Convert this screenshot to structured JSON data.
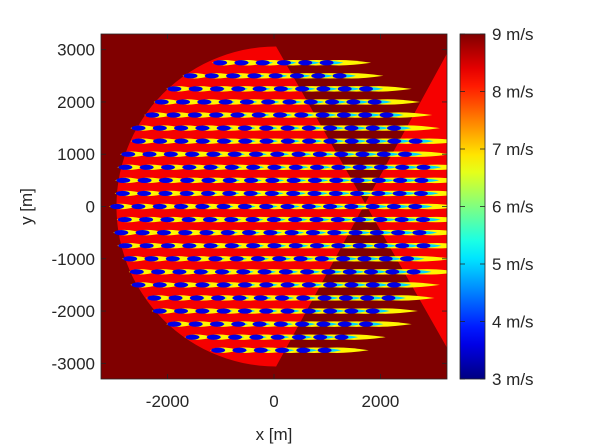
{
  "chart_data": {
    "type": "heatmap",
    "title": "",
    "xlabel": "x [m]",
    "ylabel": "y [m]",
    "xlim": [
      -3250,
      3250
    ],
    "ylim": [
      -3300,
      3300
    ],
    "xticks": [
      -2000,
      0,
      2000
    ],
    "xtick_labels": [
      "-2000",
      "0",
      "2000"
    ],
    "yticks": [
      -3000,
      -2000,
      -1000,
      0,
      1000,
      2000,
      3000
    ],
    "ytick_labels": [
      "-3000",
      "-2000",
      "-1000",
      "0",
      "1000",
      "2000",
      "3000"
    ],
    "colorbar": {
      "range": [
        3,
        9
      ],
      "ticks": [
        3,
        4,
        5,
        6,
        7,
        8,
        9
      ],
      "tick_labels": [
        "3 m/s",
        "4 m/s",
        "5 m/s",
        "6 m/s",
        "7 m/s",
        "8 m/s",
        "9 m/s"
      ],
      "colormap": "jet"
    },
    "freestream_speed": 9,
    "wind_direction": "from -x toward +x",
    "farm": {
      "shape": "circle",
      "radius": 3000,
      "turbine_row_spacing": 250,
      "turbine_column_spacing": 400,
      "min_speed_in_wake": 3
    }
  }
}
